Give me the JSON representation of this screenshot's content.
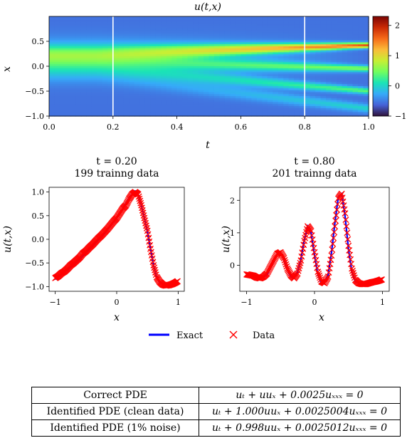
{
  "heatmap": {
    "title": "u(t,x)",
    "xlabel": "t",
    "ylabel": "x",
    "xticks": [
      "0.0",
      "0.2",
      "0.4",
      "0.6",
      "0.8",
      "1.0"
    ],
    "yticks": [
      "0.5",
      "0.0",
      "−0.5",
      "−1.0"
    ],
    "colorbar_ticks": [
      "2",
      "1",
      "0",
      "−1"
    ],
    "colormap": [
      "#30123b",
      "#4662d7",
      "#36aaf9",
      "#1ae4b6",
      "#72fe5e",
      "#c7ef34",
      "#fabb39",
      "#f66b19",
      "#ca2a04",
      "#7a0403"
    ]
  },
  "chart_data": [
    {
      "type": "heatmap",
      "title": "u(t,x)",
      "xlabel": "t",
      "ylabel": "x",
      "xlim": [
        0.0,
        1.0
      ],
      "ylim": [
        -1.0,
        1.0
      ],
      "clim": [
        -1.0,
        2.3
      ],
      "snapshot_lines_t": [
        0.2,
        0.8
      ]
    },
    {
      "type": "line",
      "title": "t = 0.20",
      "subtitle": "199 trainng data",
      "xlabel": "x",
      "ylabel": "u(t,x)",
      "xlim": [
        -1.1,
        1.1
      ],
      "ylim": [
        -1.1,
        1.1
      ],
      "xticks": [
        "−1",
        "0",
        "1"
      ],
      "yticks": [
        "1.0",
        "0.5",
        "0.0",
        "−0.5",
        "−1.0"
      ],
      "series": [
        {
          "name": "Exact",
          "color": "#0000ff",
          "x": [
            -1.0,
            -0.8,
            -0.6,
            -0.4,
            -0.2,
            0.0,
            0.1,
            0.2,
            0.3,
            0.35,
            0.4,
            0.45,
            0.5,
            0.55,
            0.6,
            0.65,
            0.7,
            0.8,
            0.9,
            1.0
          ],
          "y": [
            -0.85,
            -0.65,
            -0.42,
            -0.15,
            0.12,
            0.45,
            0.65,
            0.88,
            1.02,
            0.95,
            0.72,
            0.45,
            0.15,
            -0.2,
            -0.55,
            -0.8,
            -0.92,
            -0.97,
            -0.95,
            -0.9
          ]
        },
        {
          "name": "Data",
          "color": "#ff0000",
          "marker": "x",
          "x": [
            -1.0,
            -0.95,
            -0.9,
            -0.85,
            -0.8,
            -0.75,
            -0.7,
            -0.65,
            -0.6,
            -0.55,
            -0.5,
            -0.45,
            -0.4,
            -0.35,
            -0.3,
            -0.25,
            -0.2,
            -0.15,
            -0.1,
            -0.05,
            0.0,
            0.05,
            0.1,
            0.15,
            0.2,
            0.25,
            0.3,
            0.35,
            0.4,
            0.45,
            0.5,
            0.55,
            0.6,
            0.65,
            0.7,
            0.75,
            0.8,
            0.85,
            0.9,
            0.95,
            1.0
          ],
          "y": [
            -0.82,
            -0.78,
            -0.72,
            -0.68,
            -0.62,
            -0.55,
            -0.5,
            -0.44,
            -0.38,
            -0.3,
            -0.25,
            -0.18,
            -0.12,
            -0.05,
            0.02,
            0.08,
            0.15,
            0.22,
            0.3,
            0.38,
            0.45,
            0.55,
            0.65,
            0.72,
            0.85,
            0.95,
            1.0,
            0.95,
            0.72,
            0.45,
            0.18,
            -0.2,
            -0.55,
            -0.8,
            -0.9,
            -0.96,
            -0.98,
            -0.97,
            -0.95,
            -0.92,
            -0.88
          ]
        }
      ]
    },
    {
      "type": "line",
      "title": "t = 0.80",
      "subtitle": "201 trainng data",
      "xlabel": "x",
      "ylabel": "u(t,x)",
      "xlim": [
        -1.1,
        1.1
      ],
      "ylim": [
        -0.8,
        2.4
      ],
      "xticks": [
        "−1",
        "0",
        "1"
      ],
      "yticks": [
        "2",
        "1",
        "0"
      ],
      "series": [
        {
          "name": "Exact",
          "color": "#0000ff",
          "x": [
            -1.0,
            -0.9,
            -0.8,
            -0.7,
            -0.6,
            -0.55,
            -0.5,
            -0.45,
            -0.4,
            -0.35,
            -0.3,
            -0.25,
            -0.2,
            -0.15,
            -0.1,
            -0.05,
            0.0,
            0.05,
            0.1,
            0.15,
            0.2,
            0.25,
            0.3,
            0.35,
            0.4,
            0.45,
            0.5,
            0.55,
            0.6,
            0.7,
            0.8,
            0.9,
            1.0
          ],
          "y": [
            -0.3,
            -0.3,
            -0.4,
            -0.3,
            0.1,
            0.35,
            0.4,
            0.2,
            -0.15,
            -0.35,
            -0.4,
            -0.2,
            0.2,
            0.8,
            1.2,
            1.0,
            0.3,
            -0.3,
            -0.55,
            -0.5,
            -0.3,
            0.4,
            1.3,
            2.1,
            2.2,
            1.5,
            0.5,
            -0.2,
            -0.5,
            -0.6,
            -0.55,
            -0.5,
            -0.45
          ]
        },
        {
          "name": "Data",
          "color": "#ff0000",
          "marker": "x",
          "x": [
            -1.0,
            -0.95,
            -0.9,
            -0.85,
            -0.8,
            -0.75,
            -0.7,
            -0.65,
            -0.6,
            -0.55,
            -0.5,
            -0.45,
            -0.4,
            -0.35,
            -0.3,
            -0.25,
            -0.2,
            -0.15,
            -0.1,
            -0.05,
            0.0,
            0.05,
            0.1,
            0.15,
            0.2,
            0.25,
            0.3,
            0.35,
            0.4,
            0.45,
            0.5,
            0.55,
            0.6,
            0.65,
            0.7,
            0.75,
            0.8,
            0.85,
            0.9,
            0.95,
            1.0
          ],
          "y": [
            -0.28,
            -0.3,
            -0.32,
            -0.38,
            -0.4,
            -0.35,
            -0.25,
            -0.05,
            0.15,
            0.35,
            0.4,
            0.22,
            -0.1,
            -0.3,
            -0.4,
            -0.25,
            0.15,
            0.75,
            1.2,
            1.05,
            0.4,
            -0.2,
            -0.5,
            -0.55,
            -0.35,
            0.3,
            1.2,
            2.05,
            2.2,
            1.6,
            0.6,
            -0.1,
            -0.45,
            -0.55,
            -0.58,
            -0.58,
            -0.55,
            -0.52,
            -0.5,
            -0.47,
            -0.43
          ]
        }
      ]
    }
  ],
  "legend": {
    "exact": "Exact",
    "data": "Data"
  },
  "table": {
    "rows": [
      {
        "label": "Correct PDE",
        "eq": "uₜ + uuₓ + 0.0025uₓₓₓ = 0"
      },
      {
        "label": "Identified PDE (clean data)",
        "eq": "uₜ + 1.000uuₓ + 0.0025004uₓₓₓ = 0"
      },
      {
        "label": "Identified PDE (1% noise)",
        "eq": "uₜ + 0.998uuₓ + 0.0025012uₓₓₓ = 0"
      }
    ]
  }
}
